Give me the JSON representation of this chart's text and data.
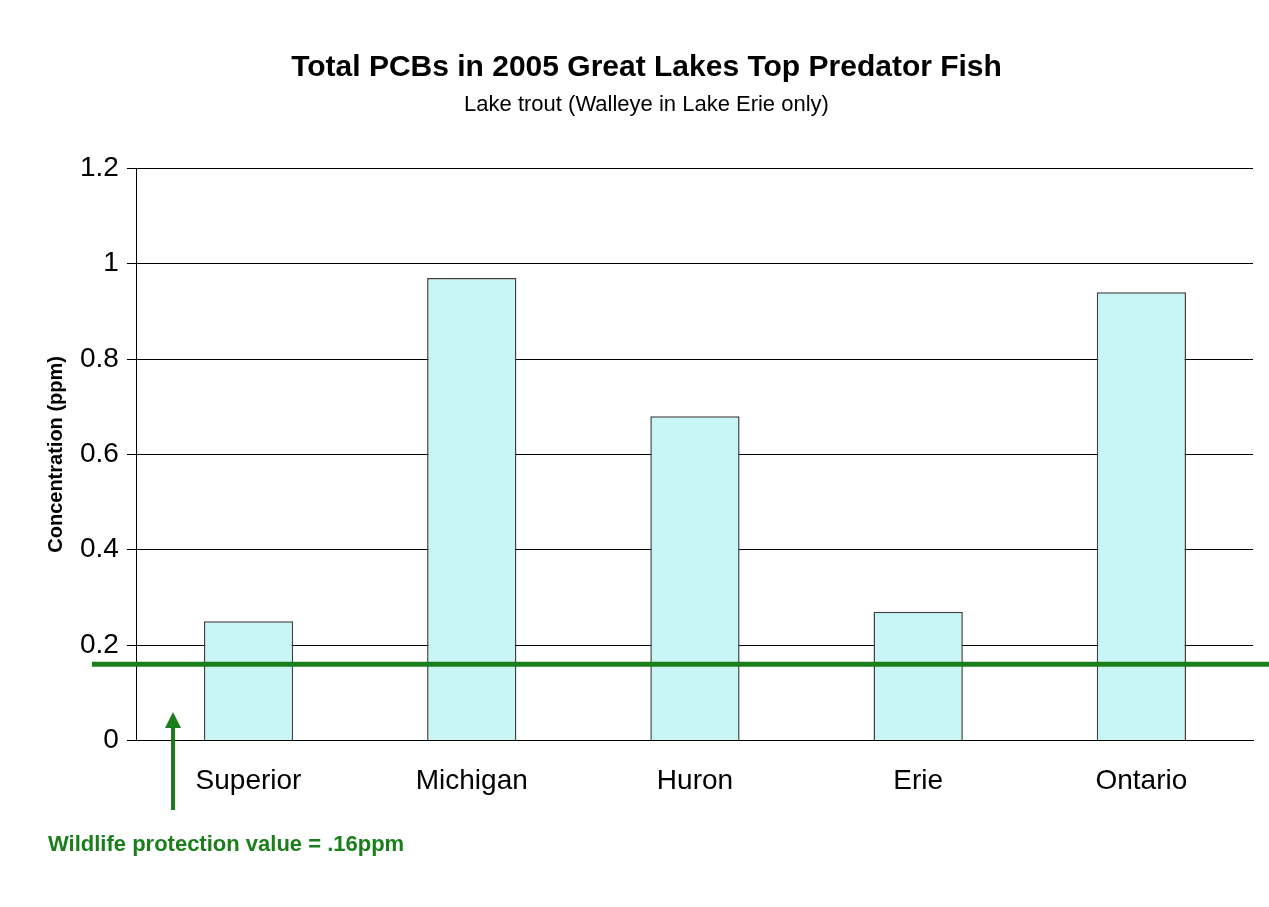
{
  "chart_data": {
    "type": "bar",
    "title": "Total PCBs in 2005 Great Lakes Top Predator Fish",
    "subtitle": "Lake trout (Walleye in Lake Erie only)",
    "ylabel": "Concentration (ppm)",
    "categories": [
      "Superior",
      "Michigan",
      "Huron",
      "Erie",
      "Ontario"
    ],
    "values": [
      0.25,
      0.97,
      0.68,
      0.27,
      0.94
    ],
    "color": "#c8f5f5",
    "ylim": [
      0,
      1.2
    ],
    "yticks": [
      0,
      0.2,
      0.4,
      0.6,
      0.8,
      1,
      1.2
    ],
    "grid": "y",
    "legend": false,
    "ref_lines": [
      {
        "axis": "y",
        "value": 0.16,
        "label": "Wildlife protection value = .16ppm",
        "color": "#1a7f1a"
      }
    ]
  }
}
